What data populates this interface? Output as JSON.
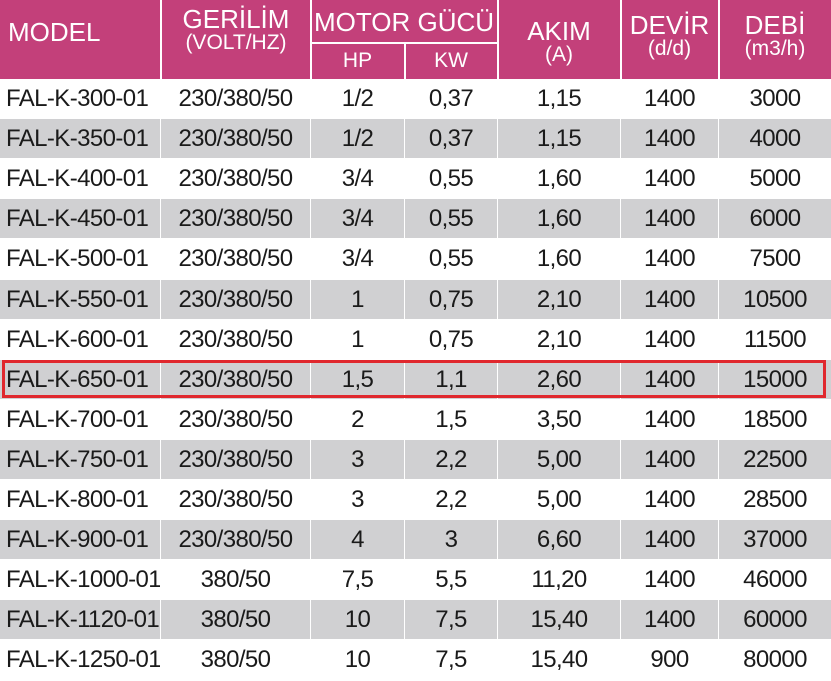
{
  "headers": {
    "model": "MODEL",
    "gerilim": "GERİLİM",
    "gerilim_unit": "(VOLT/HZ)",
    "motor_gucu": "MOTOR GÜCÜ",
    "hp": "HP",
    "kw": "KW",
    "akim": "AKIM",
    "akim_unit": "(A)",
    "devir": "DEVİR",
    "devir_unit": "(d/d)",
    "debi": "DEBİ",
    "debi_unit": "(m3/h)"
  },
  "highlight_color": "#e0282e",
  "header_color": "#c3407a",
  "highlighted_row": 7,
  "rows": [
    {
      "model": "FAL-K-300-01",
      "gerilim": "230/380/50",
      "hp": "1/2",
      "kw": "0,37",
      "akim": "1,15",
      "devir": "1400",
      "debi": "3000"
    },
    {
      "model": "FAL-K-350-01",
      "gerilim": "230/380/50",
      "hp": "1/2",
      "kw": "0,37",
      "akim": "1,15",
      "devir": "1400",
      "debi": "4000"
    },
    {
      "model": "FAL-K-400-01",
      "gerilim": "230/380/50",
      "hp": "3/4",
      "kw": "0,55",
      "akim": "1,60",
      "devir": "1400",
      "debi": "5000"
    },
    {
      "model": "FAL-K-450-01",
      "gerilim": "230/380/50",
      "hp": "3/4",
      "kw": "0,55",
      "akim": "1,60",
      "devir": "1400",
      "debi": "6000"
    },
    {
      "model": "FAL-K-500-01",
      "gerilim": "230/380/50",
      "hp": "3/4",
      "kw": "0,55",
      "akim": "1,60",
      "devir": "1400",
      "debi": "7500"
    },
    {
      "model": "FAL-K-550-01",
      "gerilim": "230/380/50",
      "hp": "1",
      "kw": "0,75",
      "akim": "2,10",
      "devir": "1400",
      "debi": "10500"
    },
    {
      "model": "FAL-K-600-01",
      "gerilim": "230/380/50",
      "hp": "1",
      "kw": "0,75",
      "akim": "2,10",
      "devir": "1400",
      "debi": "11500"
    },
    {
      "model": "FAL-K-650-01",
      "gerilim": "230/380/50",
      "hp": "1,5",
      "kw": "1,1",
      "akim": "2,60",
      "devir": "1400",
      "debi": "15000"
    },
    {
      "model": "FAL-K-700-01",
      "gerilim": "230/380/50",
      "hp": "2",
      "kw": "1,5",
      "akim": "3,50",
      "devir": "1400",
      "debi": "18500"
    },
    {
      "model": "FAL-K-750-01",
      "gerilim": "230/380/50",
      "hp": "3",
      "kw": "2,2",
      "akim": "5,00",
      "devir": "1400",
      "debi": "22500"
    },
    {
      "model": "FAL-K-800-01",
      "gerilim": "230/380/50",
      "hp": "3",
      "kw": "2,2",
      "akim": "5,00",
      "devir": "1400",
      "debi": "28500"
    },
    {
      "model": "FAL-K-900-01",
      "gerilim": "230/380/50",
      "hp": "4",
      "kw": "3",
      "akim": "6,60",
      "devir": "1400",
      "debi": "37000"
    },
    {
      "model": "FAL-K-1000-01",
      "gerilim": "380/50",
      "hp": "7,5",
      "kw": "5,5",
      "akim": "11,20",
      "devir": "1400",
      "debi": "46000"
    },
    {
      "model": "FAL-K-1120-01",
      "gerilim": "380/50",
      "hp": "10",
      "kw": "7,5",
      "akim": "15,40",
      "devir": "1400",
      "debi": "60000"
    },
    {
      "model": "FAL-K-1250-01",
      "gerilim": "380/50",
      "hp": "10",
      "kw": "7,5",
      "akim": "15,40",
      "devir": "900",
      "debi": "80000"
    }
  ]
}
